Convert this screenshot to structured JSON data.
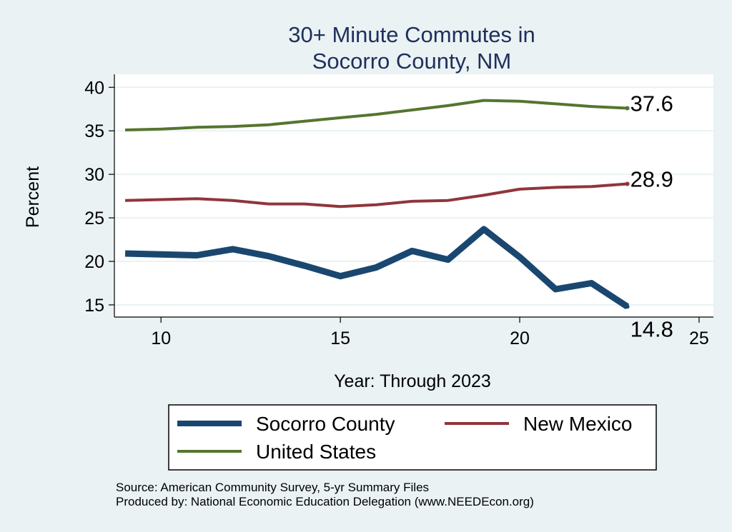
{
  "chart_data": {
    "type": "line",
    "title": [
      "30+ Minute Commutes in",
      "Socorro County, NM"
    ],
    "xlabel": "Year: Through 2023",
    "ylabel": "Percent",
    "xlim": [
      8.7,
      25.4
    ],
    "ylim": [
      13.6,
      41.5
    ],
    "xticks": [
      10,
      15,
      20,
      25
    ],
    "yticks": [
      15,
      20,
      25,
      30,
      35,
      40
    ],
    "grid": true,
    "x": [
      9,
      10,
      11,
      12,
      13,
      14,
      15,
      16,
      17,
      18,
      19,
      20,
      21,
      22,
      23
    ],
    "series": [
      {
        "name": "Socorro County",
        "color": "#1a476f",
        "values": [
          20.9,
          20.8,
          20.7,
          21.4,
          20.6,
          19.5,
          18.3,
          19.3,
          21.2,
          20.2,
          23.7,
          20.5,
          16.8,
          17.5,
          14.8
        ],
        "end_label": "14.8"
      },
      {
        "name": "New Mexico",
        "color": "#90353b",
        "values": [
          27.0,
          27.1,
          27.2,
          27.0,
          26.6,
          26.6,
          26.3,
          26.5,
          26.9,
          27.0,
          27.6,
          28.3,
          28.5,
          28.6,
          28.9
        ],
        "end_label": "28.9"
      },
      {
        "name": "United States",
        "color": "#55752f",
        "values": [
          35.1,
          35.2,
          35.4,
          35.5,
          35.7,
          36.1,
          36.5,
          36.9,
          37.4,
          37.9,
          38.5,
          38.4,
          38.1,
          37.8,
          37.6
        ],
        "end_label": "37.6"
      }
    ],
    "legend_position": "bottom"
  },
  "source": {
    "line1": "Source: American Community Survey, 5-yr Summary Files",
    "line2": "Produced by: National Economic Education Delegation (www.NEEDEcon.org)"
  }
}
